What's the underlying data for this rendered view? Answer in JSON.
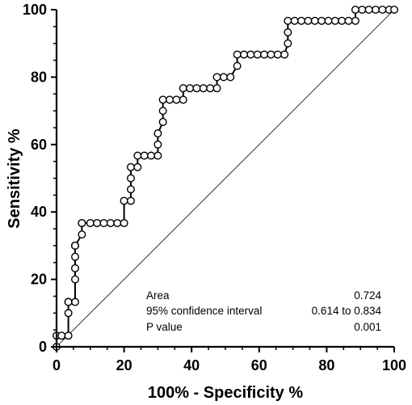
{
  "chart_data": {
    "type": "line",
    "title": "",
    "xlabel": "100% - Specificity %",
    "ylabel": "Sensitivity %",
    "xlim": [
      0,
      100
    ],
    "ylim": [
      0,
      100
    ],
    "x_ticks": [
      "0",
      "20",
      "40",
      "60",
      "80",
      "100"
    ],
    "y_ticks": [
      "0",
      "20",
      "40",
      "60",
      "80",
      "100"
    ],
    "grid": false,
    "legend": "none",
    "line_color": "#000000",
    "marker_fill": "#ffffff",
    "series": [
      {
        "x": [
          0,
          0,
          1.5,
          3.5,
          3.5,
          3.5,
          3.5,
          5.5,
          5.5,
          5.5,
          5.5,
          5.5,
          5.5,
          5.5,
          7.5,
          7.5,
          7.5,
          10,
          12,
          14,
          16,
          18,
          20,
          20,
          22,
          22,
          22,
          22,
          24,
          24,
          26,
          28,
          30,
          30,
          30,
          31.5,
          31.5,
          31.5,
          33.5,
          35.5,
          37.5,
          37.5,
          39.5,
          41.5,
          43.5,
          45.5,
          47.5,
          47.5,
          49.5,
          51.5,
          53.5,
          53.5,
          55.5,
          57.5,
          59.5,
          61.5,
          63.5,
          65.5,
          67.5,
          68.5,
          68.5,
          68.5,
          70.5,
          72.5,
          74.5,
          76.5,
          78.5,
          80.5,
          82.5,
          84.5,
          86.5,
          88.5,
          88.5,
          90.5,
          92.5,
          94.5,
          96.5,
          98.5,
          100
        ],
        "y": [
          0,
          3.3,
          3.3,
          3.3,
          10,
          13.3,
          13.3,
          13.3,
          20,
          23.3,
          26.7,
          30,
          30,
          30,
          33.3,
          36.7,
          36.7,
          36.7,
          36.7,
          36.7,
          36.7,
          36.7,
          36.7,
          43.3,
          43.3,
          46.7,
          50,
          53.3,
          53.3,
          56.7,
          56.7,
          56.7,
          56.7,
          60,
          63.3,
          66.7,
          70,
          73.3,
          73.3,
          73.3,
          73.3,
          76.7,
          76.7,
          76.7,
          76.7,
          76.7,
          76.7,
          80,
          80,
          80,
          83.3,
          86.7,
          86.7,
          86.7,
          86.7,
          86.7,
          86.7,
          86.7,
          86.7,
          90,
          93.3,
          96.7,
          96.7,
          96.7,
          96.7,
          96.7,
          96.7,
          96.7,
          96.7,
          96.7,
          96.7,
          96.7,
          100,
          100,
          100,
          100,
          100,
          100,
          100
        ]
      }
    ],
    "reference_line": {
      "x": [
        0,
        100
      ],
      "y": [
        0,
        100
      ]
    },
    "annotation_table": [
      {
        "label": "Area",
        "value": "0.724"
      },
      {
        "label": "95% confidence interval",
        "value": "0.614 to 0.834"
      },
      {
        "label": "P value",
        "value": "0.001"
      }
    ]
  }
}
